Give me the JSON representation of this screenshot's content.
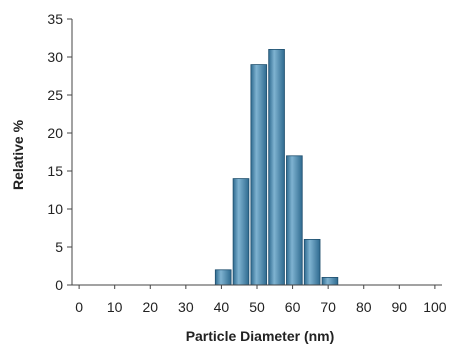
{
  "chart_data": {
    "type": "bar",
    "title": "",
    "xlabel": "Particle Diameter (nm)",
    "ylabel": "Relative %",
    "x_ticks": [
      0,
      10,
      20,
      30,
      40,
      50,
      60,
      70,
      80,
      90,
      100
    ],
    "y_ticks": [
      0,
      5,
      10,
      15,
      20,
      25,
      30,
      35
    ],
    "xlim": [
      -2,
      102
    ],
    "ylim": [
      0,
      35
    ],
    "grid": false,
    "legend": "none",
    "bar_color": "#2e6a8f",
    "bar_highlight": "#7fb3d1",
    "bin_width": 5,
    "bars": [
      {
        "x": 40,
        "value": 2
      },
      {
        "x": 45,
        "value": 14
      },
      {
        "x": 50,
        "value": 29
      },
      {
        "x": 55,
        "value": 31
      },
      {
        "x": 60,
        "value": 17
      },
      {
        "x": 65,
        "value": 6
      },
      {
        "x": 70,
        "value": 1
      }
    ]
  }
}
